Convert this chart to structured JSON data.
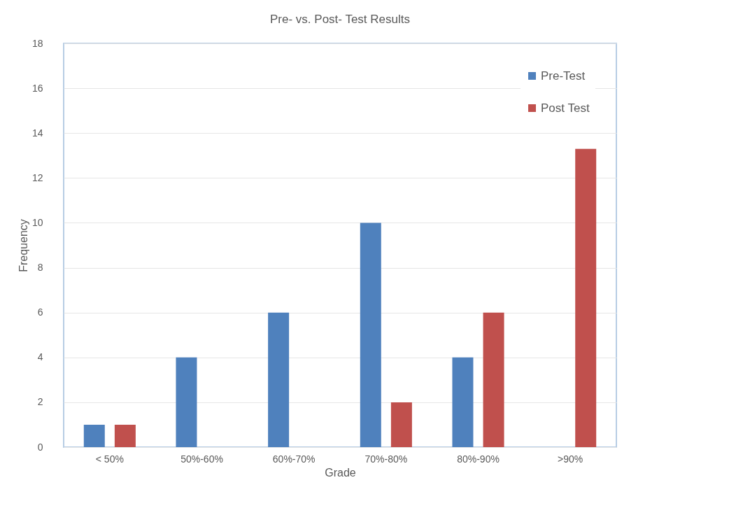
{
  "chart_data": {
    "type": "bar",
    "title": "Pre- vs. Post- Test Results",
    "xlabel": "Grade",
    "ylabel": "Frequency",
    "categories": [
      "< 50%",
      "50%-60%",
      "60%-70%",
      "70%-80%",
      "80%-90%",
      ">90%"
    ],
    "series": [
      {
        "name": "Pre-Test",
        "color": "#4f81bd",
        "values": [
          1,
          4,
          6,
          10,
          4,
          0
        ]
      },
      {
        "name": "Post Test",
        "color": "#c0504d",
        "values": [
          1,
          0,
          0,
          2,
          6,
          13.3
        ]
      }
    ],
    "ylim": [
      0,
      18
    ],
    "yticks": [
      0,
      2,
      4,
      6,
      8,
      10,
      12,
      14,
      16,
      18
    ],
    "grid": "y",
    "legend": "top right"
  }
}
